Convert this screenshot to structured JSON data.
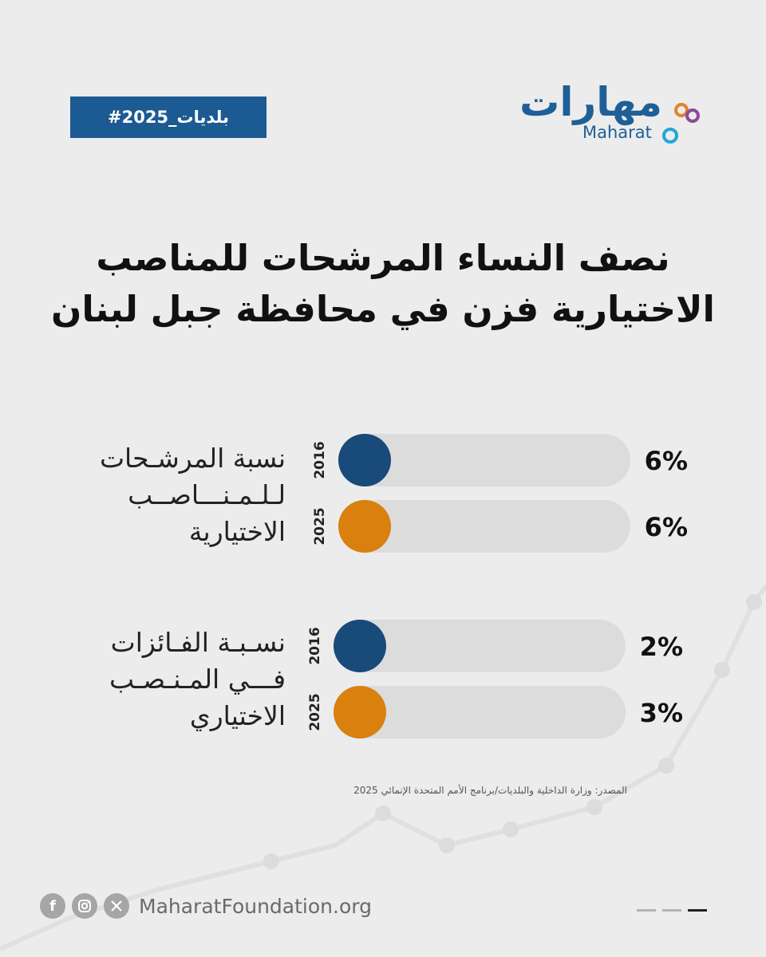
{
  "header": {
    "hashtag": "#بلديات_2025",
    "logo_arabic": "مهارات",
    "logo_english": "Maharat"
  },
  "title_lines": [
    "نصف النساء المرشحات للمناصب",
    "الاختيارية فزن في محافظة جبل لبنان"
  ],
  "colors": {
    "year_2016": "#184a7a",
    "year_2025": "#d9800f",
    "track": "#dcdcdc",
    "hashtag_bg": "#1b5a92"
  },
  "chart_data": {
    "type": "bar",
    "orientation": "horizontal",
    "unit": "%",
    "groups": [
      {
        "label_lines": [
          "نسبة المرشـحات",
          "لـلـمـنـــاصــب",
          "الاختيارية"
        ],
        "bars": [
          {
            "year": "2016",
            "value": 6,
            "display": "6%"
          },
          {
            "year": "2025",
            "value": 6,
            "display": "6%"
          }
        ]
      },
      {
        "label_lines": [
          "نسـبـة الفـائزات",
          "فـــي المـنـصـب",
          "الاختياري"
        ],
        "bars": [
          {
            "year": "2016",
            "value": 2,
            "display": "2%"
          },
          {
            "year": "2025",
            "value": 3,
            "display": "3%"
          }
        ]
      }
    ]
  },
  "source": "المصدر: وزارة الداخلية والبلديات/برنامج الأمم المتحدة الإنمائي 2025",
  "footer": {
    "website": "MaharatFoundation.org",
    "social_icons": [
      "facebook-icon",
      "instagram-icon",
      "x-icon"
    ]
  }
}
